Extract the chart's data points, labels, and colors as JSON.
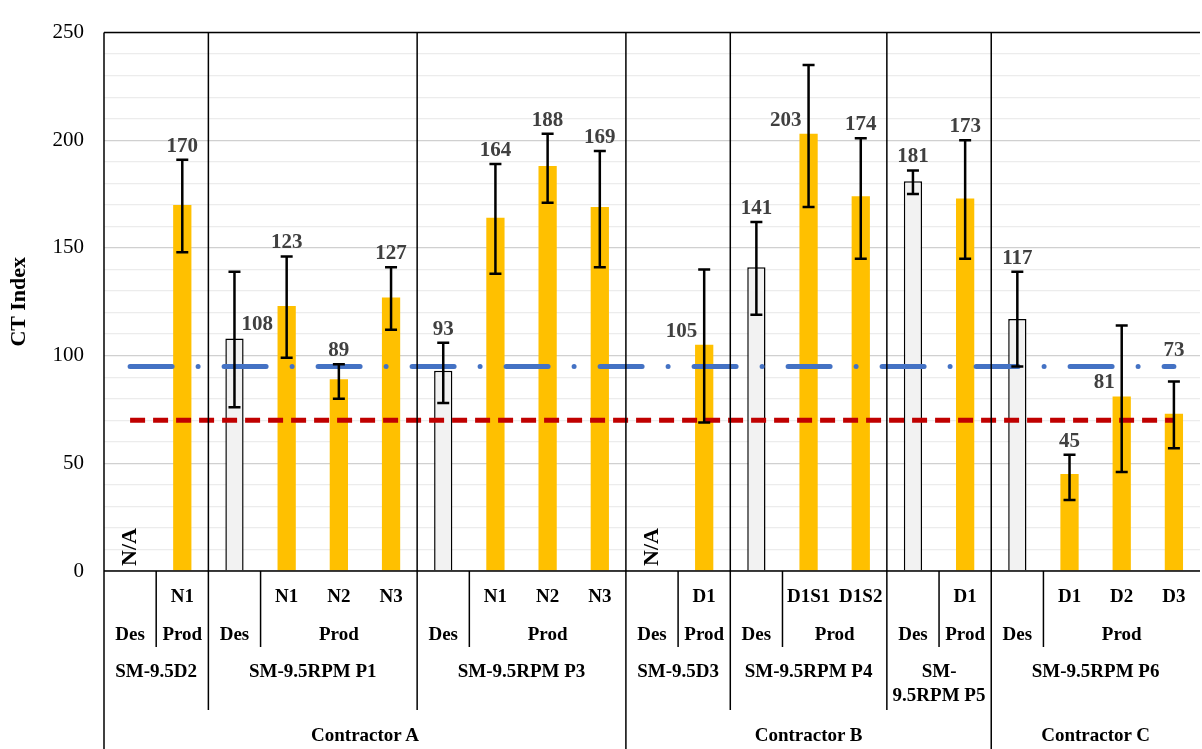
{
  "chart_data": {
    "type": "bar",
    "ylabel": "CT Index",
    "categories": [
      null,
      "N1",
      null,
      "N1",
      "N2",
      "N3",
      null,
      "N1",
      "N2",
      "N3",
      null,
      "D1",
      null,
      "D1S1",
      "D1S2",
      null,
      "D1",
      null,
      "D1",
      "D2",
      "D3"
    ],
    "series": [
      {
        "name": "Des",
        "color": "#f2f2f2",
        "values": [
          null,
          null,
          108,
          null,
          null,
          null,
          93,
          null,
          null,
          null,
          null,
          null,
          141,
          null,
          null,
          181,
          null,
          117,
          null,
          null,
          null
        ],
        "errors": [
          null,
          null,
          [
            76,
            139
          ],
          null,
          null,
          null,
          [
            78,
            106
          ],
          null,
          null,
          null,
          null,
          null,
          [
            119,
            162
          ],
          null,
          null,
          [
            175,
            186
          ],
          null,
          [
            95,
            139
          ],
          null,
          null,
          null
        ]
      },
      {
        "name": "Prod",
        "color": "#ffc000",
        "values": [
          null,
          170,
          null,
          123,
          89,
          127,
          null,
          164,
          188,
          169,
          null,
          105,
          null,
          203,
          174,
          null,
          173,
          null,
          45,
          81,
          73
        ],
        "errors": [
          null,
          [
            148,
            191
          ],
          null,
          [
            99,
            146
          ],
          [
            80,
            96
          ],
          [
            112,
            141
          ],
          null,
          [
            138,
            189
          ],
          [
            171,
            203
          ],
          [
            141,
            195
          ],
          null,
          [
            69,
            140
          ],
          null,
          [
            169,
            235
          ],
          [
            145,
            201
          ],
          null,
          [
            145,
            200
          ],
          null,
          [
            33,
            54
          ],
          [
            46,
            114
          ],
          [
            57,
            88
          ]
        ]
      }
    ],
    "ylim": [
      0,
      250
    ],
    "yticks": [
      0,
      {
        "value": 10,
        "label": null
      },
      {
        "value": 20,
        "label": null
      },
      {
        "value": 30,
        "label": null
      },
      {
        "value": 40,
        "label": null
      },
      50,
      {
        "value": 60,
        "label": null
      },
      {
        "value": 70,
        "label": null
      },
      {
        "value": 80,
        "label": null
      },
      {
        "value": 90,
        "label": null
      },
      100,
      {
        "value": 110,
        "label": null
      },
      {
        "value": 120,
        "label": null
      },
      {
        "value": 130,
        "label": null
      },
      {
        "value": 140,
        "label": null
      },
      150,
      {
        "value": 160,
        "label": null
      },
      {
        "value": 170,
        "label": null
      },
      {
        "value": 180,
        "label": null
      },
      {
        "value": 190,
        "label": null
      },
      200,
      {
        "value": 210,
        "label": null
      },
      {
        "value": 220,
        "label": null
      },
      {
        "value": 230,
        "label": null
      },
      {
        "value": 240,
        "label": null
      },
      250
    ],
    "grid": "y",
    "data_labels": true,
    "ref_lines": [
      {
        "axis": "y",
        "value": 95,
        "color": "#4472c4",
        "line_style": "dashdot"
      },
      {
        "axis": "y",
        "value": 70,
        "color": "#c00000",
        "line_style": "dashed"
      }
    ],
    "annotations": [
      "N/A",
      "N/A",
      "SM-9.5D2",
      "SM-9.5RPM P1",
      "SM-9.5RPM P3",
      "SM-9.5D3",
      "SM-9.5RPM P4",
      "SM-9.5RPM P5",
      "SM-9.5RPM P6",
      "Contractor A",
      "Contractor B",
      "Contractor C"
    ]
  }
}
